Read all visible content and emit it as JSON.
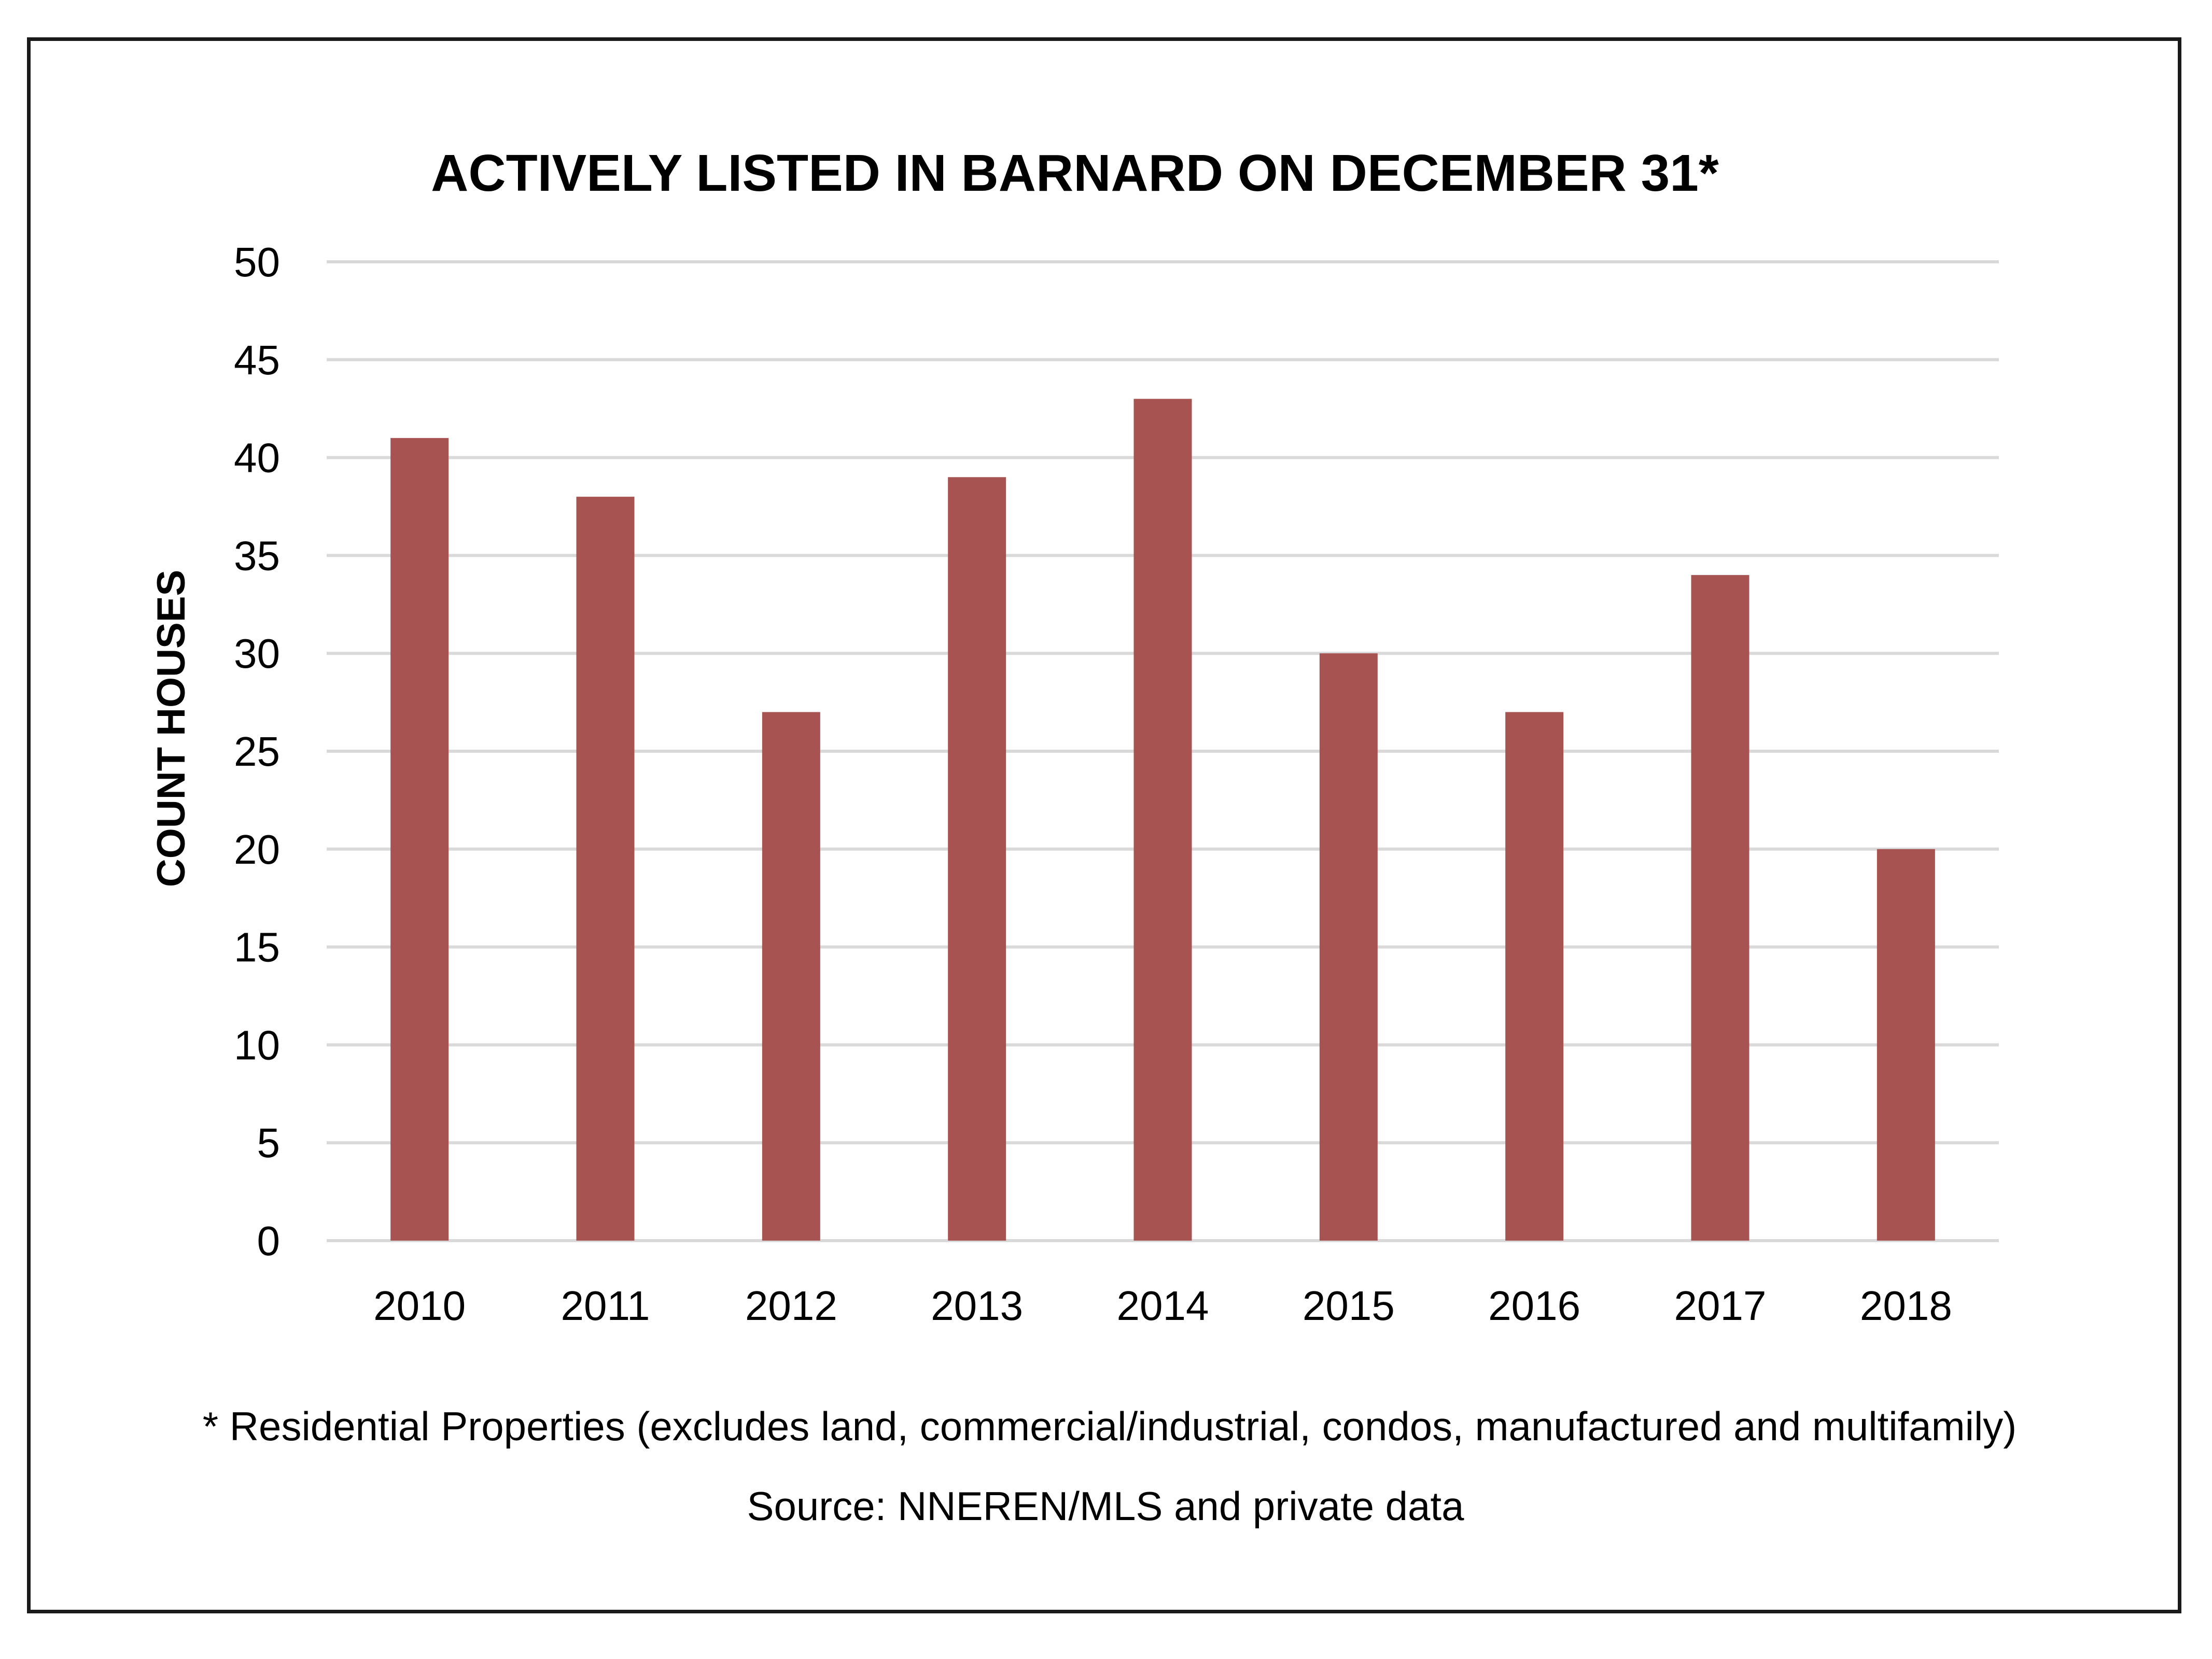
{
  "chart_data": {
    "type": "bar",
    "title": "ACTIVELY LISTED IN BARNARD ON DECEMBER 31*",
    "xlabel": "",
    "ylabel": "COUNT HOUSES",
    "categories": [
      "2010",
      "2011",
      "2012",
      "2013",
      "2014",
      "2015",
      "2016",
      "2017",
      "2018"
    ],
    "values": [
      41,
      38,
      27,
      39,
      43,
      30,
      27,
      34,
      20
    ],
    "ylim": [
      0,
      50
    ],
    "yticks": [
      0,
      5,
      10,
      15,
      20,
      25,
      30,
      35,
      40,
      45,
      50
    ],
    "grid": true,
    "legend": "none",
    "bar_color": "#a75351",
    "grid_color": "#d9d9d9"
  },
  "footnote": "* Residential Properties (excludes land, commercial/industrial, condos, manufactured and multifamily)",
  "source": "Source: NNEREN/MLS and private data"
}
